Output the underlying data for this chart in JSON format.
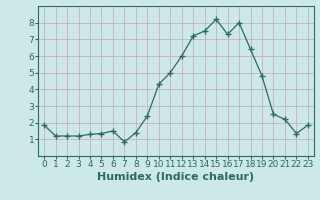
{
  "x": [
    0,
    1,
    2,
    3,
    4,
    5,
    6,
    7,
    8,
    9,
    10,
    11,
    12,
    13,
    14,
    15,
    16,
    17,
    18,
    19,
    20,
    21,
    22,
    23
  ],
  "y": [
    1.85,
    1.2,
    1.2,
    1.2,
    1.3,
    1.35,
    1.5,
    0.85,
    1.4,
    2.4,
    4.3,
    5.0,
    6.0,
    7.2,
    7.5,
    8.2,
    7.3,
    8.0,
    6.4,
    4.8,
    2.5,
    2.2,
    1.35,
    1.85
  ],
  "line_color": "#2e6b5e",
  "marker": "+",
  "marker_size": 4,
  "bg_color": "#cce8e8",
  "grid_color": "#b8cccc",
  "grid_color2": "#d4b0b0",
  "xlabel": "Humidex (Indice chaleur)",
  "xlabel_fontsize": 8,
  "tick_fontsize": 6.5,
  "xlim": [
    -0.5,
    23.5
  ],
  "ylim": [
    0,
    9
  ],
  "yticks": [
    1,
    2,
    3,
    4,
    5,
    6,
    7,
    8
  ],
  "xticks": [
    0,
    1,
    2,
    3,
    4,
    5,
    6,
    7,
    8,
    9,
    10,
    11,
    12,
    13,
    14,
    15,
    16,
    17,
    18,
    19,
    20,
    21,
    22,
    23
  ]
}
